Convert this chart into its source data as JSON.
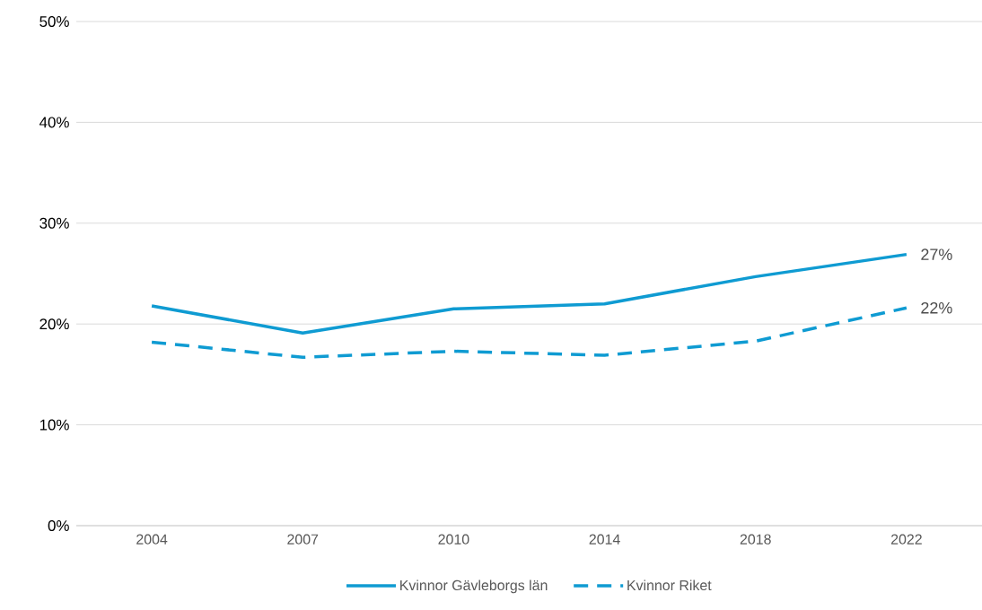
{
  "chart_data": {
    "type": "line",
    "categories": [
      "2004",
      "2007",
      "2010",
      "2014",
      "2018",
      "2022"
    ],
    "ylim": [
      0,
      50
    ],
    "yticks": [
      {
        "value": 0,
        "label": "0%"
      },
      {
        "value": 10,
        "label": "10%"
      },
      {
        "value": 20,
        "label": "20%"
      },
      {
        "value": 30,
        "label": "30%"
      },
      {
        "value": 40,
        "label": "40%"
      },
      {
        "value": 50,
        "label": "50%"
      }
    ],
    "grid": "y",
    "legend": "bottom",
    "series": [
      {
        "name": "Kvinnor Gävleborgs län",
        "color": "#0f9bd2",
        "line_style": "solid",
        "values": [
          21.8,
          19.1,
          21.5,
          22.0,
          24.7,
          26.9
        ],
        "value_labels": [
          null,
          null,
          null,
          null,
          null,
          "27%"
        ]
      },
      {
        "name": "Kvinnor Riket",
        "color": "#0f9bd2",
        "line_style": "dashed",
        "values": [
          18.2,
          16.7,
          17.3,
          16.9,
          18.3,
          21.6
        ],
        "value_labels": [
          null,
          null,
          null,
          null,
          null,
          "22%"
        ]
      }
    ]
  }
}
